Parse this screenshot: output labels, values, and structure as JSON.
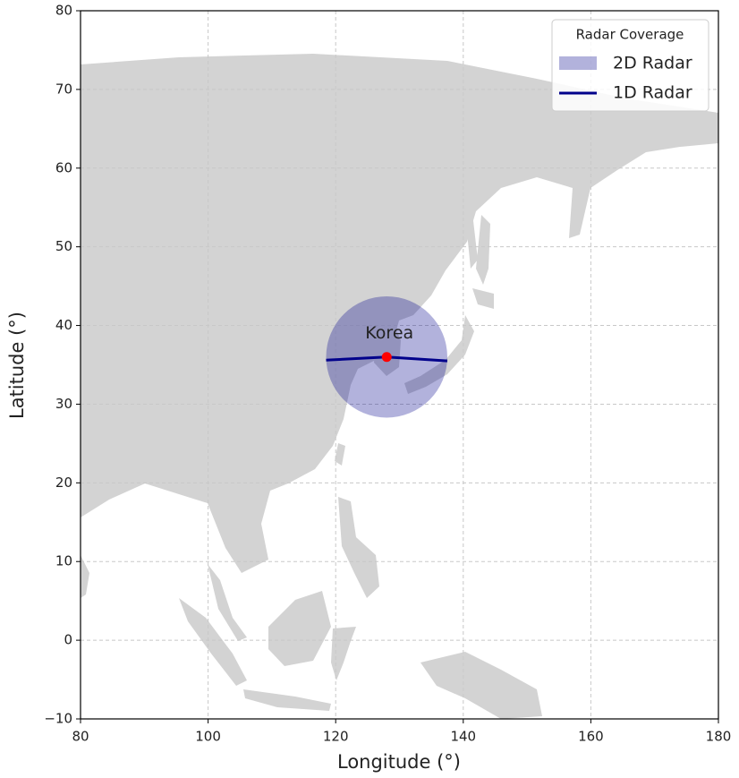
{
  "chart_data": {
    "type": "map",
    "xlabel": "Longitude (°)",
    "ylabel": "Latitude (°)",
    "xlim": [
      80,
      180
    ],
    "ylim": [
      -10,
      80
    ],
    "xticks": [
      80,
      100,
      120,
      140,
      160,
      180
    ],
    "yticks": [
      {
        "value": -10,
        "label": "−10"
      },
      0,
      10,
      20,
      30,
      40,
      50,
      60,
      70,
      80
    ],
    "grid": true,
    "legend": {
      "title": "Radar Coverage",
      "loc": "upper right"
    },
    "point": {
      "label": "Korea",
      "x": 128,
      "y": 36,
      "color": "red"
    },
    "coverage_2d": {
      "name": "2D Radar",
      "x": 128,
      "y": 36,
      "radius": 9.5,
      "color": "#00008b",
      "alpha": 0.3
    },
    "coverage_1d": {
      "name": "1D Radar",
      "x": [
        118.5,
        128,
        137.5
      ],
      "y": [
        35.6,
        36,
        35.5
      ],
      "color": "#00008b"
    }
  }
}
